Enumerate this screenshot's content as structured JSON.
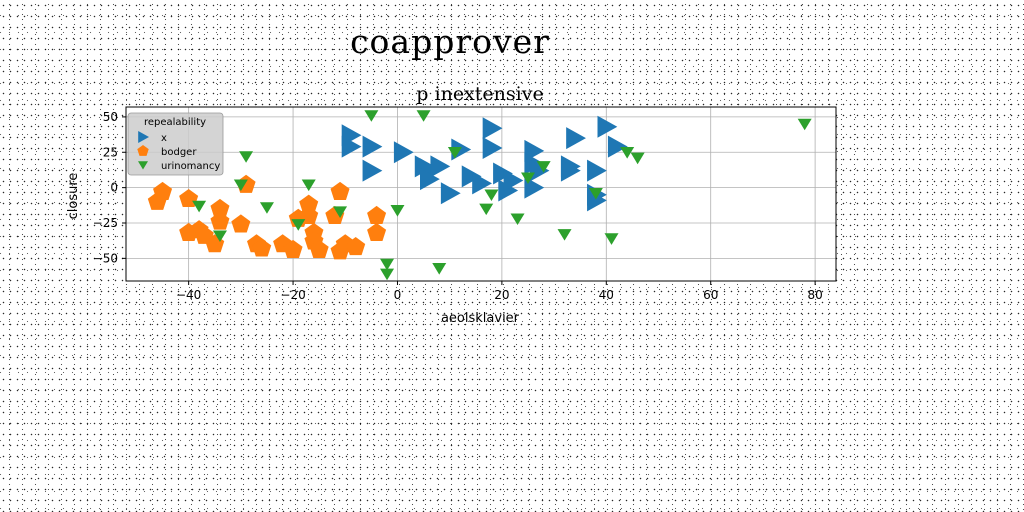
{
  "suptitle": "coapprover",
  "chart_data": {
    "type": "scatter",
    "title": "p inextensive",
    "xlabel": "aeolsklavier",
    "ylabel": "closure",
    "xlim": [
      -52,
      84
    ],
    "ylim": [
      -66,
      57
    ],
    "xticks": [
      -40,
      -20,
      0,
      20,
      40,
      60,
      80
    ],
    "yticks": [
      50,
      25,
      0,
      -25,
      -50
    ],
    "grid": true,
    "legend": {
      "title": "repealability",
      "position": "upper-left"
    },
    "series": [
      {
        "name": "x",
        "marker": "triangle-right",
        "color": "#1f77b4",
        "points": [
          [
            -9,
            37
          ],
          [
            -9,
            29
          ],
          [
            -5,
            29
          ],
          [
            -5,
            12
          ],
          [
            1,
            25
          ],
          [
            5,
            15
          ],
          [
            6,
            13
          ],
          [
            6,
            6
          ],
          [
            8,
            15
          ],
          [
            10,
            -4
          ],
          [
            12,
            27
          ],
          [
            14,
            8
          ],
          [
            16,
            3
          ],
          [
            18,
            28
          ],
          [
            18,
            42
          ],
          [
            20,
            10
          ],
          [
            21,
            -2
          ],
          [
            22,
            5
          ],
          [
            26,
            26
          ],
          [
            26,
            17
          ],
          [
            26,
            0
          ],
          [
            27,
            12
          ],
          [
            33,
            15
          ],
          [
            33,
            12
          ],
          [
            34,
            35
          ],
          [
            38,
            12
          ],
          [
            38,
            -5
          ],
          [
            38,
            -9
          ],
          [
            40,
            43
          ],
          [
            42,
            29
          ]
        ]
      },
      {
        "name": "bodger",
        "color": "#ff7f0e",
        "marker": "pentagon",
        "points": [
          [
            -46,
            -10
          ],
          [
            -45,
            -3
          ],
          [
            -40,
            -8
          ],
          [
            -40,
            -32
          ],
          [
            -38,
            -30
          ],
          [
            -37,
            -34
          ],
          [
            -35,
            -40
          ],
          [
            -34,
            -15
          ],
          [
            -34,
            -24
          ],
          [
            -30,
            -26
          ],
          [
            -29,
            2
          ],
          [
            -27,
            -40
          ],
          [
            -26,
            -43
          ],
          [
            -22,
            -40
          ],
          [
            -20,
            -44
          ],
          [
            -19,
            -22
          ],
          [
            -17,
            -12
          ],
          [
            -17,
            -20
          ],
          [
            -16,
            -32
          ],
          [
            -16,
            -38
          ],
          [
            -15,
            -44
          ],
          [
            -12,
            -20
          ],
          [
            -11,
            -3
          ],
          [
            -11,
            -45
          ],
          [
            -10,
            -40
          ],
          [
            -8,
            -42
          ],
          [
            -4,
            -20
          ],
          [
            -4,
            -32
          ]
        ]
      },
      {
        "name": "urinomancy",
        "color": "#2ca02c",
        "marker": "triangle-down",
        "points": [
          [
            -38,
            -13
          ],
          [
            -34,
            -34
          ],
          [
            -30,
            2
          ],
          [
            -29,
            22
          ],
          [
            -25,
            -14
          ],
          [
            -17,
            2
          ],
          [
            -19,
            -26
          ],
          [
            -11,
            -17
          ],
          [
            -5,
            51
          ],
          [
            -2,
            -54
          ],
          [
            -2,
            -61
          ],
          [
            0,
            -16
          ],
          [
            5,
            51
          ],
          [
            8,
            -57
          ],
          [
            11,
            25
          ],
          [
            17,
            -15
          ],
          [
            18,
            -5
          ],
          [
            23,
            -22
          ],
          [
            25,
            7
          ],
          [
            28,
            15
          ],
          [
            32,
            -33
          ],
          [
            38,
            -4
          ],
          [
            41,
            -36
          ],
          [
            44,
            25
          ],
          [
            46,
            21
          ],
          [
            78,
            45
          ]
        ]
      }
    ]
  }
}
